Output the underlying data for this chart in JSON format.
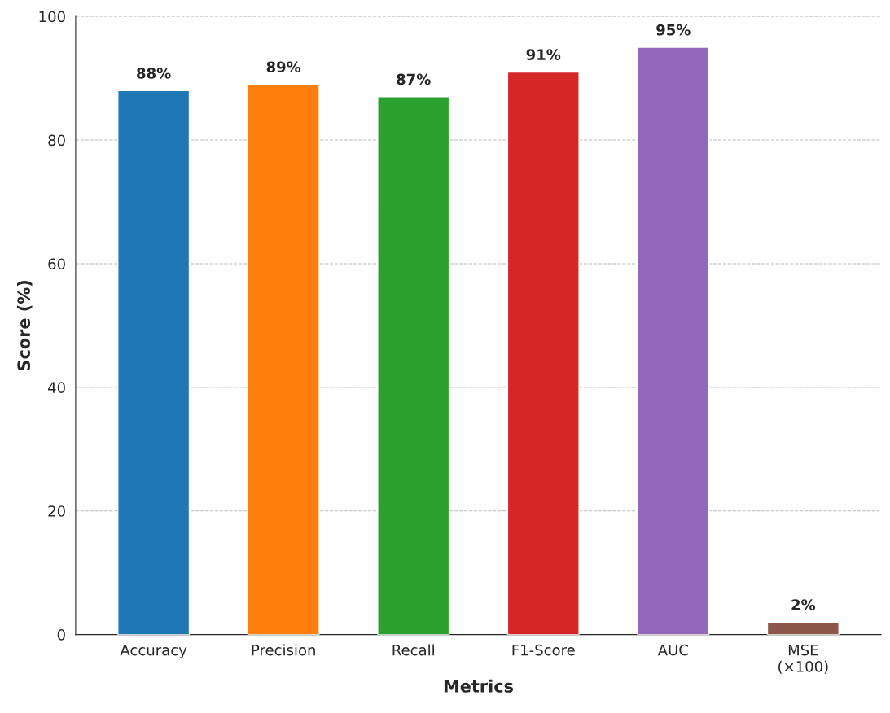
{
  "chart_data": {
    "type": "bar",
    "xlabel": "Metrics",
    "ylabel": "Score (%)",
    "categories": [
      "Accuracy",
      "Precision",
      "Recall",
      "F1-Score",
      "AUC",
      "MSE\n(×100)"
    ],
    "values": [
      88,
      89,
      87,
      91,
      95,
      2
    ],
    "colors": [
      "#1f77b4",
      "#ff7f0e",
      "#2ca02c",
      "#d62728",
      "#9467bd",
      "#8c564b"
    ],
    "value_labels": [
      "88%",
      "89%",
      "87%",
      "91%",
      "95%",
      "2%"
    ],
    "ylim": [
      0,
      100
    ],
    "yticks": [
      0,
      20,
      40,
      60,
      80,
      100
    ],
    "grid": "y"
  }
}
